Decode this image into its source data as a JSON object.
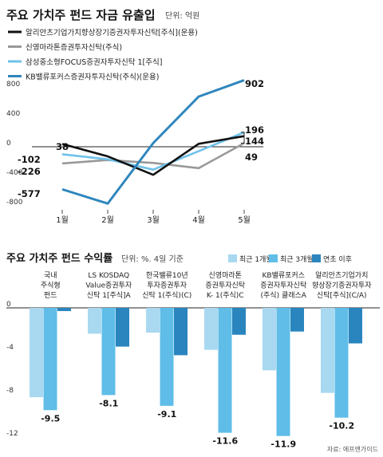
{
  "chart_data": [
    {
      "type": "line",
      "title": "주요 가치주 펀드 자금 유출입",
      "unit": "단위: 억원",
      "categories": [
        "1월",
        "2월",
        "3월",
        "4월",
        "5월"
      ],
      "ylim": [
        -800,
        900
      ],
      "y_ticks": [
        "800",
        "400",
        "0",
        "-400",
        "-800"
      ],
      "grid": false,
      "legend_position": "top-left",
      "series": [
        {
          "name": "알리안츠기업가치향상장기증권자투자신탁[주식](운용)",
          "color": "#111111",
          "values": [
            38,
            -130,
            -380,
            40,
            144
          ]
        },
        {
          "name": "신영마라톤증권투자신탁(주식)",
          "color": "#999999",
          "values": [
            -226,
            -180,
            -220,
            -290,
            49
          ]
        },
        {
          "name": "삼성중소형FOCUS증권자투자신탁 1[주식]",
          "color": "#6ec1ea",
          "values": [
            -102,
            -170,
            -310,
            -60,
            196
          ]
        },
        {
          "name": "KB밸류포커스증권자투자신탁(주식)(운용)",
          "color": "#2f86bd",
          "values": [
            -577,
            -770,
            50,
            680,
            902
          ]
        }
      ],
      "labels": [
        {
          "text": "38",
          "x": "1월",
          "series": 0
        },
        {
          "text": "-102",
          "x": "1월",
          "series": 2
        },
        {
          "text": "-226",
          "x": "1월",
          "series": 1
        },
        {
          "text": "-577",
          "x": "1월",
          "series": 3
        },
        {
          "text": "902",
          "x": "5월",
          "series": 3
        },
        {
          "text": "196",
          "x": "5월",
          "series": 2
        },
        {
          "text": "144",
          "x": "5월",
          "series": 0
        },
        {
          "text": "49",
          "x": "5월",
          "series": 1
        }
      ]
    },
    {
      "type": "bar",
      "title": "주요 가치주 펀드 수익률",
      "unit": "단위: %. 4일 기준",
      "ylim": [
        -12,
        0
      ],
      "y_ticks": [
        "0",
        "-4",
        "-8",
        "-12"
      ],
      "grid": false,
      "legend_position": "top-right",
      "source": "자료: 에프앤가이드",
      "series": [
        {
          "name": "최근 1개월",
          "color": "#a9d8f1"
        },
        {
          "name": "최근 3개월",
          "color": "#5fbde8"
        },
        {
          "name": "연초 이후",
          "color": "#2a85be"
        }
      ],
      "categories": [
        {
          "name": [
            "국내",
            "주식형",
            "펀드"
          ],
          "values": [
            -8.3,
            -9.5,
            -0.3
          ],
          "label": "-9.5"
        },
        {
          "name": [
            "LS KOSDAQ",
            "Value증권투자",
            "신탁 1[주식]A"
          ],
          "values": [
            -2.4,
            -8.1,
            -3.6
          ],
          "label": "-8.1"
        },
        {
          "name": [
            "한국밸류10년",
            "투자증권투자",
            "신탁 1(주식)(C)"
          ],
          "values": [
            -2.3,
            -9.1,
            -4.4
          ],
          "label": "-9.1"
        },
        {
          "name": [
            "신영마라톤",
            "증권투자신탁",
            "K- 1(주식)C"
          ],
          "values": [
            -3.9,
            -11.6,
            -2.5
          ],
          "label": "-11.6"
        },
        {
          "name": [
            "KB밸류포커스",
            "증권자투자신탁",
            "(주식) 클래스A"
          ],
          "values": [
            -5.8,
            -11.9,
            -2.2
          ],
          "label": "-11.9"
        },
        {
          "name": [
            "알리안츠기업가치",
            "향상장기증권자투자",
            "신탁[주식](C/A)"
          ],
          "values": [
            -7.9,
            -10.2,
            -3.3
          ],
          "label": "-10.2"
        }
      ]
    }
  ]
}
